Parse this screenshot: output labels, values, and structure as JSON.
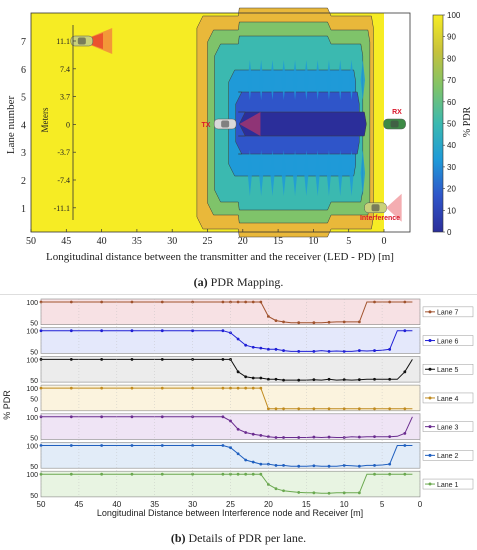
{
  "chart_data": [
    {
      "type": "heatmap",
      "xlabel": "Longitudinal distance between the transmitter and the receiver (LED - PD) [m]",
      "ylabel": "Lane number",
      "inner_ylabel": "Meters",
      "x_ticks": [
        50,
        45,
        40,
        35,
        30,
        25,
        20,
        15,
        10,
        5,
        0
      ],
      "xlim": [
        50,
        -2
      ],
      "lanes": [
        "7",
        "6",
        "5",
        "4",
        "3",
        "2",
        "1"
      ],
      "meters": [
        "11.1",
        "7.4",
        "3.7",
        "0",
        "-3.7",
        "-7.4",
        "-11.1"
      ],
      "colorbar": {
        "label": "% PDR",
        "ticks": [
          0,
          10,
          20,
          30,
          40,
          50,
          60,
          70,
          80,
          90,
          100
        ]
      },
      "annotations": {
        "tx": "TX",
        "rx": "RX",
        "interference": "Interference"
      },
      "region_boundaries": {
        "full_pdr_beyond_m": 26,
        "degraded_zone_m": [
          20,
          2
        ]
      }
    },
    {
      "type": "line",
      "xlabel": "Longitudinal Distance between Interference node and Receiver [m]",
      "ylabel": "% PDR",
      "x_ticks": [
        50,
        45,
        40,
        35,
        30,
        25,
        20,
        15,
        10,
        5,
        0
      ],
      "xlim": [
        50,
        0
      ],
      "x": [
        50,
        48,
        46,
        44,
        42,
        40,
        38,
        36,
        34,
        32,
        30,
        28,
        26,
        25,
        24,
        23,
        22,
        21,
        20,
        19,
        18,
        17,
        16,
        15,
        14,
        13,
        12,
        11,
        10,
        9,
        8,
        7,
        6,
        5,
        4,
        3,
        2,
        1
      ],
      "series": [
        {
          "name": "Lane 7",
          "color": "#a0522d",
          "fill": "#f7e1e4",
          "values": [
            100,
            100,
            100,
            100,
            100,
            100,
            100,
            100,
            100,
            100,
            100,
            100,
            100,
            100,
            100,
            100,
            100,
            100,
            65,
            55,
            52,
            50,
            50,
            50,
            50,
            50,
            51,
            52,
            52,
            52,
            52,
            100,
            100,
            100,
            100,
            100,
            100,
            100
          ]
        },
        {
          "name": "Lane 6",
          "color": "#1f1fd6",
          "fill": "#e4e8fb",
          "values": [
            100,
            100,
            100,
            100,
            100,
            100,
            100,
            100,
            100,
            100,
            100,
            100,
            100,
            95,
            80,
            65,
            60,
            58,
            55,
            55,
            52,
            50,
            50,
            50,
            50,
            52,
            50,
            51,
            50,
            50,
            52,
            51,
            52,
            53,
            55,
            100,
            100,
            100
          ]
        },
        {
          "name": "Lane 5",
          "color": "#111111",
          "fill": "#ececec",
          "values": [
            100,
            100,
            100,
            100,
            100,
            100,
            100,
            100,
            100,
            100,
            100,
            100,
            100,
            100,
            70,
            58,
            55,
            55,
            52,
            52,
            50,
            50,
            50,
            50,
            51,
            50,
            52,
            50,
            51,
            50,
            51,
            52,
            52,
            52,
            52,
            52,
            70,
            100
          ]
        },
        {
          "name": "Lane 4",
          "color": "#c08a1e",
          "fill": "#fbf3de",
          "values": [
            100,
            100,
            100,
            100,
            100,
            100,
            100,
            100,
            100,
            100,
            100,
            100,
            100,
            100,
            100,
            100,
            100,
            100,
            0,
            0,
            0,
            0,
            0,
            0,
            0,
            0,
            0,
            0,
            0,
            0,
            0,
            0,
            0,
            0,
            0,
            0,
            0,
            0
          ]
        },
        {
          "name": "Lane 3",
          "color": "#6a2c8f",
          "fill": "#efe4f5",
          "values": [
            100,
            100,
            100,
            100,
            100,
            100,
            100,
            100,
            100,
            100,
            100,
            100,
            100,
            90,
            70,
            62,
            58,
            55,
            52,
            50,
            50,
            50,
            50,
            50,
            51,
            50,
            51,
            50,
            50,
            52,
            51,
            52,
            52,
            52,
            52,
            53,
            60,
            100
          ]
        },
        {
          "name": "Lane 2",
          "color": "#1f5fbf",
          "fill": "#e2ecf8",
          "values": [
            100,
            100,
            100,
            100,
            100,
            100,
            100,
            100,
            100,
            100,
            100,
            100,
            100,
            95,
            80,
            65,
            60,
            55,
            55,
            52,
            52,
            50,
            50,
            50,
            51,
            50,
            50,
            50,
            52,
            51,
            50,
            52,
            52,
            53,
            55,
            100,
            100,
            100
          ]
        },
        {
          "name": "Lane 1",
          "color": "#6aa84f",
          "fill": "#e8f4e2",
          "values": [
            100,
            100,
            100,
            100,
            100,
            100,
            100,
            100,
            100,
            100,
            100,
            100,
            100,
            100,
            100,
            100,
            100,
            100,
            75,
            65,
            60,
            58,
            56,
            55,
            55,
            54,
            54,
            55,
            55,
            55,
            55,
            100,
            100,
            100,
            100,
            100,
            100,
            100
          ]
        }
      ]
    }
  ],
  "captions": {
    "a_label": "(a)",
    "a_text": " PDR Mapping.",
    "b_label": "(b)",
    "b_text": " Details of PDR per lane."
  }
}
